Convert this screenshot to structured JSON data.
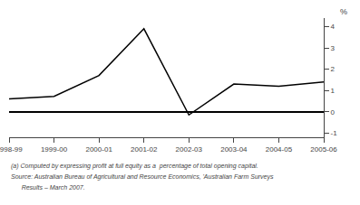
{
  "chart_data": {
    "type": "line",
    "categories": [
      "1998-99",
      "1999-00",
      "2000-01",
      "2001-02",
      "2002-03",
      "2003-04",
      "2004-05",
      "2005-06"
    ],
    "values": [
      0.6,
      0.72,
      1.7,
      3.9,
      -0.15,
      1.3,
      1.2,
      1.4
    ],
    "color": "#000000",
    "ylabel": "%",
    "ylim": [
      -1.2,
      4.4
    ],
    "yticks": [
      -1,
      0,
      1,
      2,
      3,
      4
    ],
    "grid": false,
    "annotations": [
      "(a) Computed by expressing profit at full equity as a  percentage of total opening capital.",
      "Source: Australian Bureau of Agricultural and Resource Economics, 'Australian Farm Surveys",
      "      Results – March 2007."
    ]
  }
}
